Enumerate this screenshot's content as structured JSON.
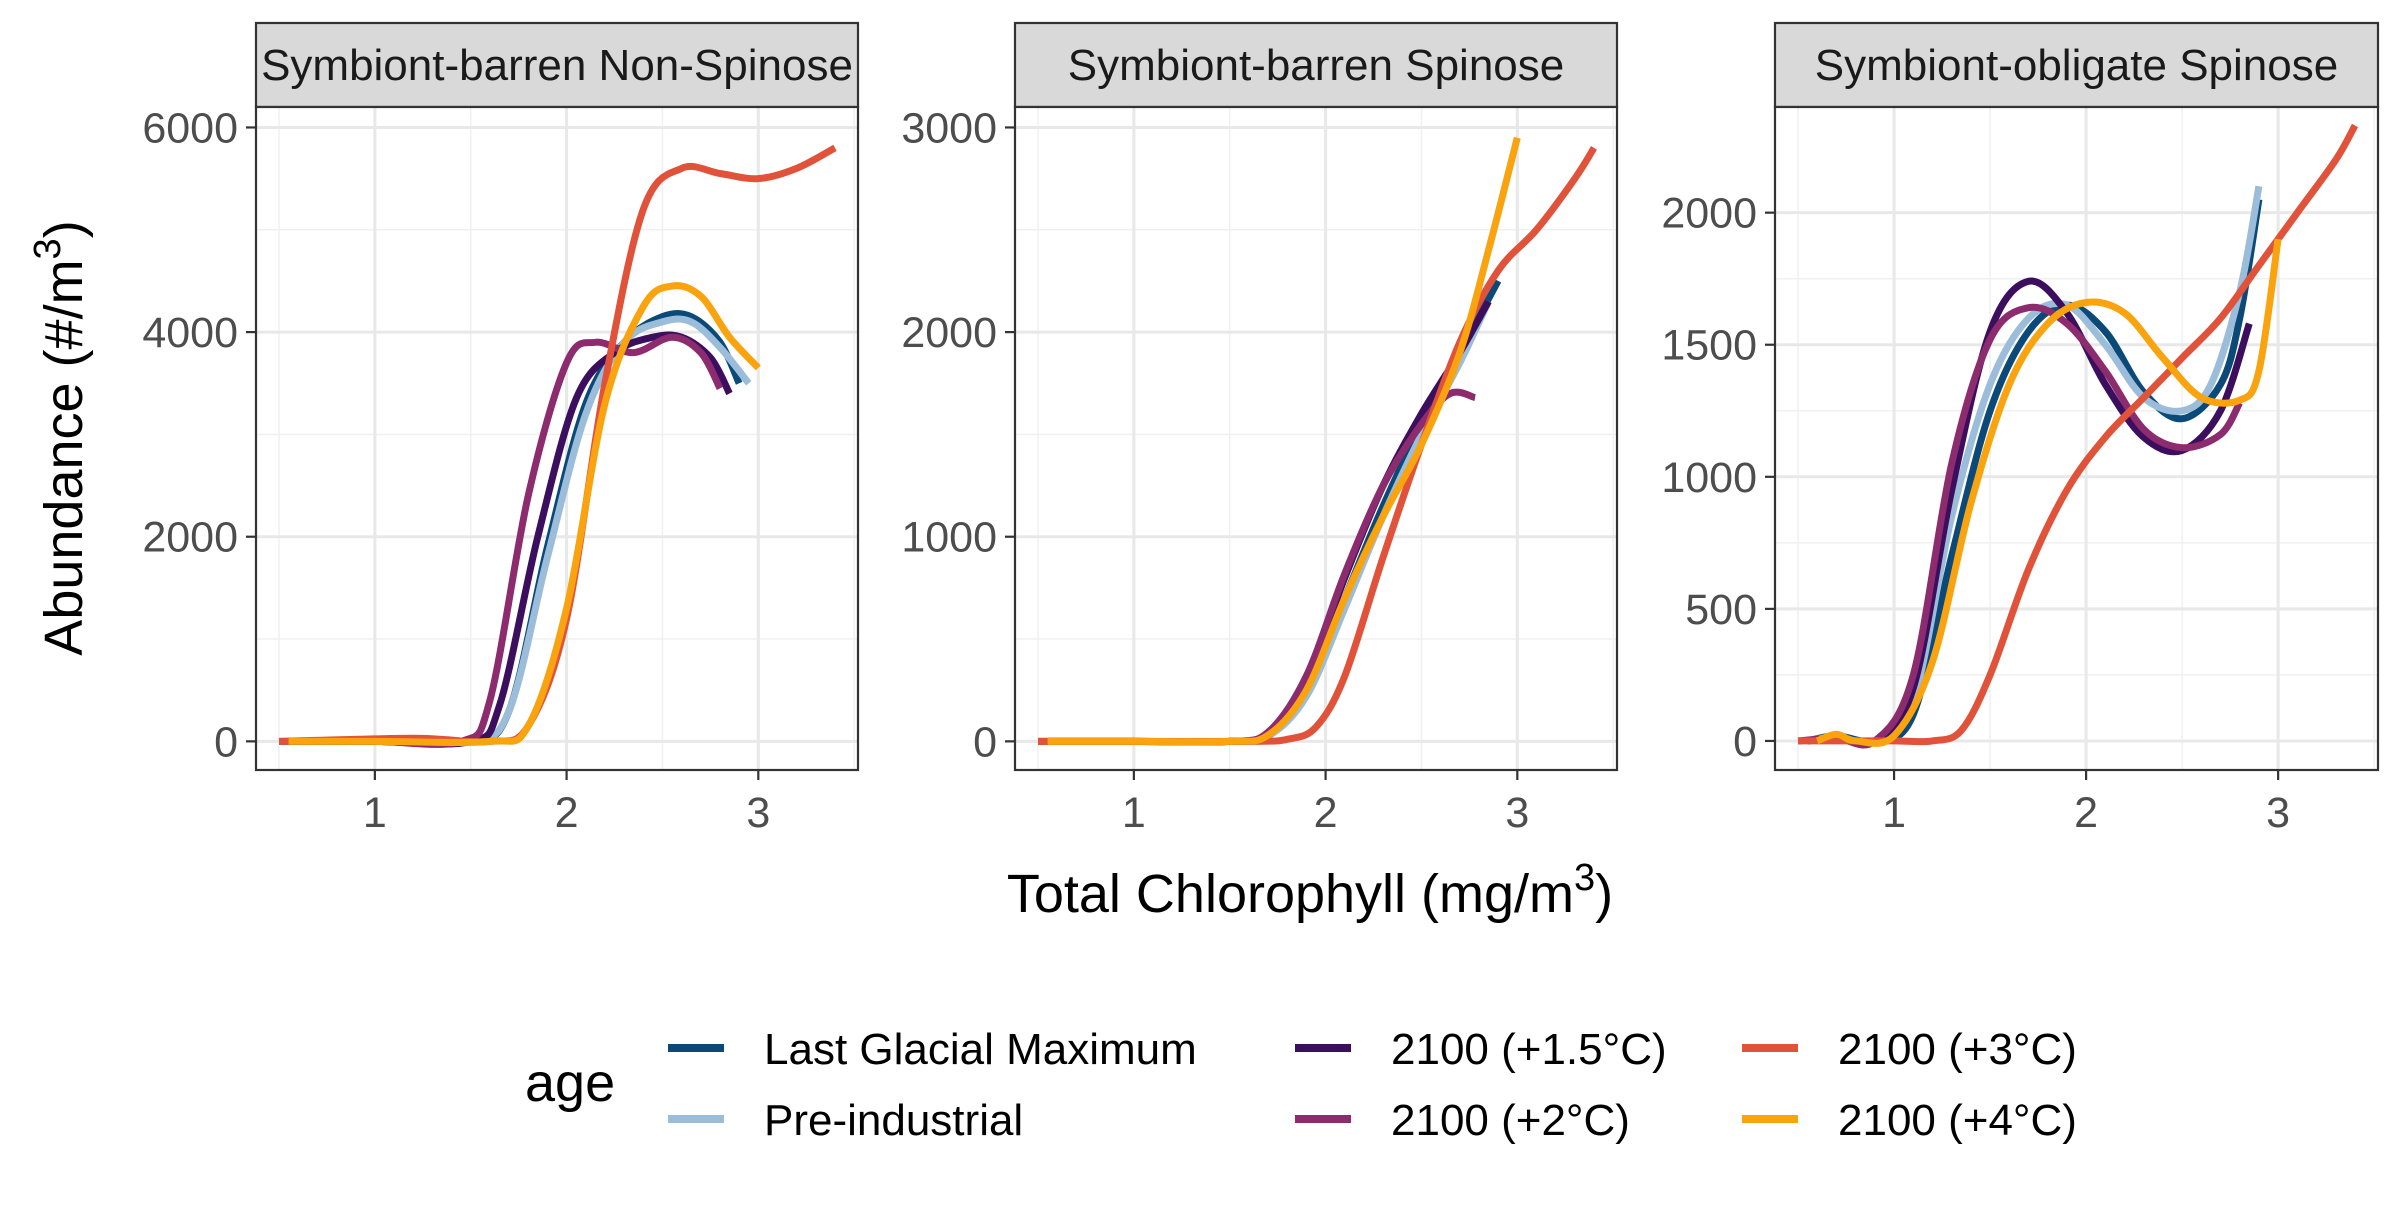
{
  "chart_data": {
    "type": "line",
    "xlabel": "Total Chlorophyll (mg/m",
    "xlabel_sup": "3",
    "xlabel_close": ")",
    "ylabel": "Abundance (#/m",
    "ylabel_sup": "3",
    "ylabel_close": ")",
    "legend": {
      "title": "age",
      "position": "bottom",
      "entries": [
        {
          "name": "Last Glacial Maximum",
          "color": "#0b4a78"
        },
        {
          "name": "Pre-industrial",
          "color": "#9bbdd9"
        },
        {
          "name": "2100 (+1.5°C)",
          "color": "#3c0f5e"
        },
        {
          "name": "2100 (+2°C)",
          "color": "#8c2b6e"
        },
        {
          "name": "2100 (+3°C)",
          "color": "#e0533a"
        },
        {
          "name": "2100 (+4°C)",
          "color": "#f9a30f"
        }
      ]
    },
    "grid": true,
    "panels": [
      {
        "title": "Symbiont-barren Non-Spinose",
        "xlim": [
          0.38,
          3.52
        ],
        "ylim": [
          -280,
          6200
        ],
        "xticks": [
          1,
          2,
          3
        ],
        "yticks": [
          0,
          2000,
          4000,
          6000
        ],
        "series": [
          {
            "name": "Last Glacial Maximum",
            "x": [
              0.55,
              1.0,
              1.5,
              1.7,
              1.9,
              2.1,
              2.3,
              2.5,
              2.65,
              2.8,
              2.9
            ],
            "y": [
              0,
              0,
              0,
              300,
              1900,
              3300,
              3900,
              4150,
              4150,
              3900,
              3500
            ]
          },
          {
            "name": "Pre-industrial",
            "x": [
              0.55,
              1.0,
              1.5,
              1.7,
              1.9,
              2.1,
              2.3,
              2.5,
              2.65,
              2.8,
              2.95
            ],
            "y": [
              0,
              0,
              0,
              300,
              1800,
              3200,
              3900,
              4100,
              4100,
              3850,
              3500
            ]
          },
          {
            "name": "2100 (+1.5°C)",
            "x": [
              0.55,
              1.0,
              1.5,
              1.65,
              1.85,
              2.05,
              2.25,
              2.45,
              2.6,
              2.75,
              2.85
            ],
            "y": [
              0,
              0,
              0,
              350,
              2000,
              3350,
              3800,
              3950,
              3950,
              3750,
              3400
            ]
          },
          {
            "name": "2100 (+2°C)",
            "x": [
              0.5,
              1.0,
              1.45,
              1.6,
              1.8,
              2.0,
              2.15,
              2.35,
              2.55,
              2.7,
              2.8
            ],
            "y": [
              0,
              0,
              0,
              400,
              2400,
              3700,
              3900,
              3800,
              3950,
              3800,
              3450
            ]
          },
          {
            "name": "2100 (+3°C)",
            "x": [
              0.5,
              1.2,
              1.6,
              1.8,
              2.0,
              2.2,
              2.4,
              2.6,
              2.8,
              3.0,
              3.2,
              3.4
            ],
            "y": [
              0,
              30,
              0,
              150,
              1200,
              3500,
              5200,
              5600,
              5550,
              5500,
              5600,
              5800
            ]
          },
          {
            "name": "2100 (+4°C)",
            "x": [
              0.55,
              1.0,
              1.6,
              1.8,
              2.0,
              2.2,
              2.4,
              2.55,
              2.7,
              2.85,
              3.0
            ],
            "y": [
              0,
              0,
              0,
              150,
              1300,
              3300,
              4250,
              4450,
              4350,
              3950,
              3650
            ]
          }
        ]
      },
      {
        "title": "Symbiont-barren Spinose",
        "xlim": [
          0.38,
          3.52
        ],
        "ylim": [
          -140,
          3100
        ],
        "xticks": [
          1,
          2,
          3
        ],
        "yticks": [
          0,
          1000,
          2000,
          3000
        ],
        "series": [
          {
            "name": "Last Glacial Maximum",
            "x": [
              0.55,
              1.0,
              1.5,
              1.7,
              1.9,
              2.1,
              2.3,
              2.5,
              2.7,
              2.9
            ],
            "y": [
              0,
              0,
              0,
              30,
              250,
              700,
              1150,
              1550,
              1900,
              2250
            ]
          },
          {
            "name": "Pre-industrial",
            "x": [
              0.55,
              1.0,
              1.5,
              1.7,
              1.9,
              2.1,
              2.3,
              2.5,
              2.7,
              2.85
            ],
            "y": [
              0,
              0,
              0,
              25,
              220,
              650,
              1100,
              1500,
              1850,
              2150
            ]
          },
          {
            "name": "2100 (+1.5°C)",
            "x": [
              0.55,
              1.0,
              1.5,
              1.7,
              1.9,
              2.1,
              2.3,
              2.5,
              2.7,
              2.85
            ],
            "y": [
              0,
              0,
              0,
              40,
              300,
              800,
              1250,
              1600,
              1900,
              2150
            ]
          },
          {
            "name": "2100 (+2°C)",
            "x": [
              0.5,
              1.0,
              1.5,
              1.7,
              1.9,
              2.1,
              2.3,
              2.5,
              2.65,
              2.78
            ],
            "y": [
              0,
              0,
              0,
              45,
              320,
              820,
              1250,
              1550,
              1700,
              1680
            ]
          },
          {
            "name": "2100 (+3°C)",
            "x": [
              0.5,
              1.0,
              1.6,
              1.8,
              1.95,
              2.1,
              2.3,
              2.5,
              2.7,
              2.9,
              3.1,
              3.3,
              3.4
            ],
            "y": [
              0,
              0,
              0,
              10,
              70,
              320,
              900,
              1450,
              1950,
              2300,
              2500,
              2750,
              2900
            ]
          },
          {
            "name": "2100 (+4°C)",
            "x": [
              0.55,
              1.0,
              1.5,
              1.7,
              1.9,
              2.1,
              2.3,
              2.5,
              2.7,
              2.85,
              3.0
            ],
            "y": [
              0,
              0,
              0,
              30,
              250,
              700,
              1100,
              1450,
              1900,
              2400,
              2950
            ]
          }
        ]
      },
      {
        "title": "Symbiont-obligate Spinose",
        "xlim": [
          0.38,
          3.52
        ],
        "ylim": [
          -110,
          2400
        ],
        "xticks": [
          1,
          2,
          3
        ],
        "yticks": [
          0,
          500,
          1000,
          1500,
          2000
        ],
        "series": [
          {
            "name": "Last Glacial Maximum",
            "x": [
              0.55,
              0.7,
              0.9,
              1.1,
              1.3,
              1.5,
              1.7,
              1.9,
              2.1,
              2.3,
              2.5,
              2.7,
              2.8,
              2.9
            ],
            "y": [
              0,
              20,
              0,
              100,
              700,
              1250,
              1550,
              1650,
              1550,
              1320,
              1220,
              1350,
              1600,
              2050
            ]
          },
          {
            "name": "Pre-industrial",
            "x": [
              0.55,
              0.7,
              0.9,
              1.1,
              1.3,
              1.5,
              1.7,
              1.9,
              2.1,
              2.3,
              2.5,
              2.65,
              2.8,
              2.9
            ],
            "y": [
              0,
              15,
              0,
              150,
              850,
              1350,
              1600,
              1650,
              1500,
              1300,
              1250,
              1350,
              1700,
              2100
            ]
          },
          {
            "name": "2100 (+1.5°C)",
            "x": [
              0.55,
              0.7,
              0.9,
              1.1,
              1.3,
              1.5,
              1.7,
              1.9,
              2.1,
              2.3,
              2.5,
              2.7,
              2.85
            ],
            "y": [
              0,
              10,
              0,
              200,
              950,
              1550,
              1740,
              1620,
              1350,
              1150,
              1100,
              1250,
              1580
            ]
          },
          {
            "name": "2100 (+2°C)",
            "x": [
              0.5,
              0.7,
              0.9,
              1.1,
              1.3,
              1.5,
              1.7,
              1.9,
              2.1,
              2.3,
              2.5,
              2.7,
              2.8
            ],
            "y": [
              0,
              10,
              0,
              250,
              1050,
              1520,
              1640,
              1580,
              1400,
              1180,
              1110,
              1160,
              1280
            ]
          },
          {
            "name": "2100 (+3°C)",
            "x": [
              0.5,
              0.8,
              1.0,
              1.2,
              1.35,
              1.5,
              1.7,
              1.9,
              2.1,
              2.3,
              2.5,
              2.7,
              2.9,
              3.1,
              3.3,
              3.4
            ],
            "y": [
              0,
              0,
              0,
              0,
              40,
              250,
              650,
              950,
              1150,
              1300,
              1450,
              1600,
              1800,
              2000,
              2200,
              2330
            ]
          },
          {
            "name": "2100 (+4°C)",
            "x": [
              0.6,
              0.7,
              0.8,
              1.0,
              1.2,
              1.4,
              1.6,
              1.8,
              2.0,
              2.2,
              2.4,
              2.6,
              2.8,
              2.9,
              3.0
            ],
            "y": [
              0,
              25,
              0,
              20,
              300,
              900,
              1350,
              1580,
              1660,
              1620,
              1450,
              1300,
              1290,
              1400,
              1900
            ]
          }
        ]
      }
    ]
  }
}
